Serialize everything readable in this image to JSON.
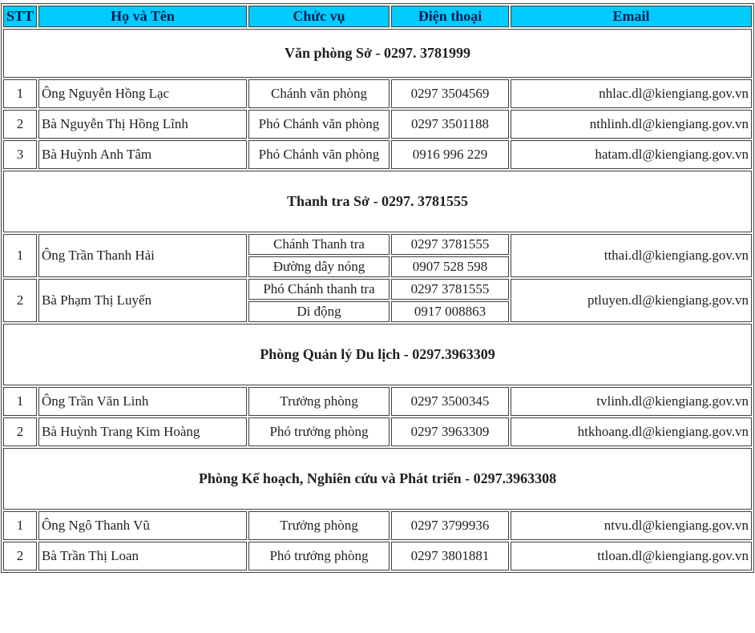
{
  "table": {
    "colors": {
      "header_bg": "#00CCFF",
      "header_text": "#001a4d",
      "border": "#3f3f3f",
      "text": "#1f1f1f"
    },
    "columns": {
      "stt": "STT",
      "name": "Họ và Tên",
      "role": "Chức vụ",
      "phone": "Điện thoại",
      "email": "Email"
    },
    "sections": [
      {
        "title": "Văn phòng Sở - 0297. 3781999",
        "rows": [
          {
            "stt": "1",
            "name": "Ông Nguyễn Hồng Lạc",
            "roles": [
              {
                "role": "Chánh văn phòng",
                "phone": "0297 3504569"
              }
            ],
            "email": "nhlac.dl@kiengiang.gov.vn"
          },
          {
            "stt": "2",
            "name": "Bà Nguyễn Thị Hồng Lĩnh",
            "roles": [
              {
                "role": "Phó Chánh văn phòng",
                "phone": "0297 3501188"
              }
            ],
            "email": "nthlinh.dl@kiengiang.gov.vn"
          },
          {
            "stt": "3",
            "name": "Bà Huỳnh Anh Tâm",
            "roles": [
              {
                "role": "Phó Chánh văn phòng",
                "phone": "0916 996 229"
              }
            ],
            "email": "hatam.dl@kiengiang.gov.vn"
          }
        ]
      },
      {
        "title": "Thanh tra Sở - 0297. 3781555",
        "rows": [
          {
            "stt": "1",
            "name": "Ông Trần Thanh Hải",
            "roles": [
              {
                "role": "Chánh Thanh tra",
                "phone": "0297 3781555"
              },
              {
                "role": "Đường dây nóng",
                "phone": "0907 528 598"
              }
            ],
            "email": "tthai.dl@kiengiang.gov.vn"
          },
          {
            "stt": "2",
            "name": "Bà Phạm Thị Luyến",
            "roles": [
              {
                "role": "Phó Chánh thanh tra",
                "phone": "0297 3781555"
              },
              {
                "role": "Di động",
                "phone": "0917 008863"
              }
            ],
            "email": "ptluyen.dl@kiengiang.gov.vn"
          }
        ]
      },
      {
        "title": "Phòng Quản lý Du lịch - 0297.3963309",
        "rows": [
          {
            "stt": "1",
            "name": "Ông Trần Văn Linh",
            "roles": [
              {
                "role": "Trưởng phòng",
                "phone": "0297 3500345"
              }
            ],
            "email": "tvlinh.dl@kiengiang.gov.vn"
          },
          {
            "stt": "2",
            "name": "Bà Huỳnh Trang Kim Hoàng",
            "roles": [
              {
                "role": "Phó trưởng phòng",
                "phone": "0297 3963309"
              }
            ],
            "email": "htkhoang.dl@kiengiang.gov.vn"
          }
        ]
      },
      {
        "title": "Phòng Kế hoạch, Nghiên cứu và Phát triển - 0297.3963308",
        "rows": [
          {
            "stt": "1",
            "name": "Ông Ngô Thanh Vũ",
            "roles": [
              {
                "role": "Trưởng phòng",
                "phone": "0297 3799936"
              }
            ],
            "email": "ntvu.dl@kiengiang.gov.vn"
          },
          {
            "stt": "2",
            "name": "Bà Trần Thị Loan",
            "roles": [
              {
                "role": "Phó trưởng phòng",
                "phone": "0297 3801881"
              }
            ],
            "email": "ttloan.dl@kiengiang.gov.vn"
          }
        ]
      }
    ]
  }
}
